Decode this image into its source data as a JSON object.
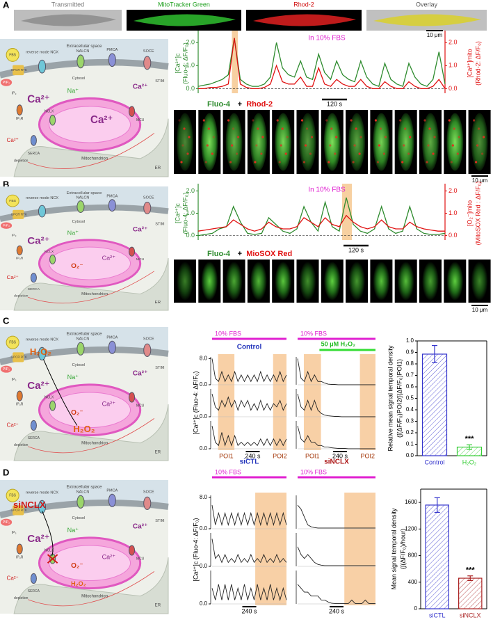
{
  "panel_labels": [
    "A",
    "B",
    "C",
    "D"
  ],
  "top_images": [
    "Transmitted",
    "MitoTracker Green",
    "Rhod-2",
    "Overlay"
  ],
  "scale_bar": "10 μm",
  "diagram": {
    "extracellular": "Extracellular space",
    "fbs": "FBS",
    "receptor": "GPCR RTK",
    "pip2": "PIP₂",
    "ip3": "IP₃",
    "ip3r": "IP₃R",
    "ncx": "reverse mode NCX",
    "nalcn": "NALCN",
    "pmca": "PMCA",
    "soce": "SOCE",
    "stim": "STIM",
    "cytosol": "Cytosol",
    "na": "Na⁺",
    "ca": "Ca²⁺",
    "nclx": "NCLX",
    "mcu": "MCU",
    "mito": "Mitochondrion",
    "er": "ER",
    "serca": "SERCA",
    "depletion": "depletion",
    "superoxide": "O₂⁻",
    "h2o2": "H₂O₂",
    "sinclx": "siNCLX"
  },
  "chart_data": [
    {
      "type": "dual-line",
      "annotation": "In 10% FBS",
      "scale": "120 s",
      "legend_joiner": "+",
      "ylabel": [
        "[Ca²⁺]c",
        "(Fluo-4: ΔF/F₀)"
      ],
      "y2label": [
        "[Ca²⁺]mito",
        "(Rhod-2: ΔF/F₀)"
      ],
      "ylim": [
        -0.2,
        2.4
      ],
      "y2lim": [
        -0.2,
        2.4
      ],
      "yticks": [
        {
          "value": 0,
          "label": "0.0"
        },
        {
          "value": 1,
          "label": "1.0"
        },
        {
          "value": 2,
          "label": "2.0"
        }
      ],
      "y2ticks": [
        {
          "value": 0,
          "label": "0.0"
        },
        {
          "value": 1,
          "label": "1.0"
        },
        {
          "value": 2,
          "label": "2.0"
        }
      ],
      "series": [
        {
          "name": "Fluo-4",
          "color": "#2e8b2e",
          "values": [
            0.1,
            0.15,
            0.2,
            0.3,
            0.4,
            0.6,
            2.2,
            0.4,
            0.2,
            0.1,
            0.1,
            0.2,
            0.5,
            2.0,
            0.9,
            0.6,
            0.5,
            1.2,
            0.5,
            0.4,
            1.5,
            0.7,
            0.4,
            1.2,
            0.6,
            0.4,
            0.3,
            1.2,
            0.5,
            0.2,
            0.1,
            1.1,
            0.4,
            0.2,
            0.1,
            1.1,
            0.5,
            0.2,
            0.1,
            0.4,
            1.6,
            0.2
          ]
        },
        {
          "name": "Rhod-2",
          "color": "#e01010",
          "axis": "y2",
          "values": [
            0,
            0,
            0.05,
            0.05,
            0.1,
            0.2,
            2.2,
            0.2,
            0.05,
            0,
            0,
            0.05,
            0.2,
            1.0,
            0.3,
            0.2,
            0.2,
            0.5,
            0.1,
            0.1,
            0.9,
            0.2,
            0.1,
            0.4,
            0.2,
            0.1,
            0.1,
            0.4,
            0.1,
            0,
            0,
            0.3,
            0.1,
            0,
            0,
            0.3,
            0.1,
            0,
            0,
            0.1,
            0.4,
            0
          ]
        }
      ]
    },
    {
      "type": "dual-line",
      "annotation": "In 10% FBS",
      "scale": "120 s",
      "legend_joiner": "+",
      "ylabel": [
        "[Ca²⁺]c",
        "(Fluo-4: ΔF/F₀)"
      ],
      "y2label": [
        "[O₂⁻]mito",
        "(MitoSOX Red : ΔF/F₀)"
      ],
      "ylim": [
        -0.2,
        2.2
      ],
      "y2lim": [
        -0.2,
        2.2
      ],
      "yticks": [
        {
          "value": 0,
          "label": "0.0"
        },
        {
          "value": 1,
          "label": "1.0"
        },
        {
          "value": 2,
          "label": "2.0"
        }
      ],
      "y2ticks": [
        {
          "value": 0,
          "label": "0.0"
        },
        {
          "value": 1,
          "label": "1.0"
        },
        {
          "value": 2,
          "label": "2.0"
        }
      ],
      "series": [
        {
          "name": "Fluo-4",
          "color": "#2e8b2e",
          "values": [
            0,
            0.05,
            0.1,
            0.3,
            0.4,
            1.3,
            0.6,
            0.1,
            0.05,
            0.1,
            0.8,
            0.5,
            0.2,
            0.1,
            0.3,
            1.3,
            0.6,
            0.2,
            1.5,
            0.4,
            0.2,
            1.7,
            0.5,
            0.2,
            0.1,
            0.3,
            1.3,
            0.3,
            0.1,
            0.2,
            1.3,
            0.3,
            0.1,
            0.05,
            0.05,
            0.1
          ]
        },
        {
          "name": "MioSOX Red",
          "color": "#e01010",
          "axis": "y2",
          "values": [
            0.2,
            0.25,
            0.3,
            0.35,
            0.4,
            0.7,
            0.5,
            0.3,
            0.2,
            0.3,
            0.6,
            0.4,
            0.3,
            0.3,
            0.4,
            0.8,
            0.6,
            0.4,
            0.8,
            0.5,
            0.4,
            0.9,
            0.6,
            0.4,
            0.3,
            0.4,
            0.7,
            0.4,
            0.3,
            0.3,
            0.6,
            0.4,
            0.3,
            0.25,
            0.2,
            0.2
          ]
        }
      ]
    },
    {
      "type": "traces",
      "ylabel": "[Ca²⁺]c (Fluo-4: ΔF/F₀)",
      "ylim": [
        0,
        8.5
      ],
      "yticks": [
        {
          "value": 0,
          "label": "0.0"
        },
        {
          "value": 8,
          "label": "8.0"
        }
      ],
      "regions": [
        "POI1",
        "POI2"
      ],
      "scale": "240 s",
      "columns": [
        {
          "title": "Control",
          "title_color": "#2233bb",
          "stimulus": "10% FBS",
          "series": [
            {
              "values": [
                8,
                2,
                1,
                4,
                1,
                3,
                1,
                4,
                1,
                3,
                1,
                3,
                1,
                3,
                1,
                4,
                1,
                3,
                1,
                3,
                1,
                4,
                1,
                3
              ]
            },
            {
              "values": [
                7,
                3,
                2,
                5,
                3,
                6,
                3,
                5,
                2,
                5,
                3,
                5,
                2,
                4,
                2,
                5,
                2,
                4,
                2,
                4,
                3,
                5,
                2,
                4
              ]
            },
            {
              "values": [
                7,
                2,
                1,
                5,
                1,
                4,
                1,
                4,
                1,
                2,
                1,
                2,
                1,
                2,
                1,
                3,
                1,
                3,
                1,
                3,
                1,
                3,
                1,
                3
              ]
            }
          ]
        },
        {
          "stimulus": "10% FBS",
          "treatment": "50 μM H₂O₂",
          "series": [
            {
              "values": [
                8,
                2,
                1,
                4,
                1,
                3,
                1,
                1,
                0.5,
                0.2,
                0.1,
                0.1,
                0,
                0,
                0,
                0,
                0,
                0,
                0,
                0,
                0,
                0,
                0,
                0
              ]
            },
            {
              "values": [
                7,
                3,
                2,
                5,
                2,
                5,
                2,
                1,
                0.5,
                0.3,
                0.2,
                0.1,
                0.1,
                0,
                0,
                0,
                0,
                0,
                0,
                0,
                0,
                0,
                0,
                0
              ]
            },
            {
              "values": [
                7,
                3,
                2,
                4,
                2,
                2,
                1,
                1,
                0.5,
                0.5,
                0.3,
                0.2,
                0.1,
                0.1,
                0.1,
                0,
                0,
                0,
                0,
                0,
                0,
                0,
                0,
                0
              ]
            }
          ]
        }
      ]
    },
    {
      "type": "bar",
      "ylabel": [
        "Relative mean signal temporal density",
        "(∫(ΔF/F₀)POI2/∫(ΔF/F₀)POI1)"
      ],
      "categories": [
        "Control",
        "H₂O₂"
      ],
      "values": [
        0.885,
        0.075
      ],
      "errors": [
        0.075,
        0.02
      ],
      "colors": [
        "#3333cc",
        "#33cc33"
      ],
      "significance": "***",
      "ylim": [
        0,
        1.0
      ],
      "yticks": [
        {
          "value": 0,
          "label": "0.0"
        },
        0.1,
        0.2,
        0.3,
        0.4,
        0.5,
        0.6,
        0.7,
        0.8,
        0.9,
        {
          "value": 1,
          "label": "1.0"
        }
      ]
    },
    {
      "type": "traces",
      "ylabel": "[Ca²⁺]c (Fluo-4: ΔF/F₀)",
      "ylim": [
        0,
        8.5
      ],
      "yticks": [
        {
          "value": 0,
          "label": "0.0"
        },
        {
          "value": 8,
          "label": "8.0"
        }
      ],
      "scale": "240 s",
      "columns": [
        {
          "title": "siCTL",
          "title_color": "#2233bb",
          "stimulus": "10% FBS",
          "series": [
            {
              "values": [
                6,
                1,
                4,
                1,
                4,
                1,
                4,
                1,
                4,
                1,
                4,
                1,
                4,
                1,
                4,
                1,
                4,
                1,
                4,
                1,
                4,
                1,
                4,
                1
              ]
            },
            {
              "values": [
                7,
                2,
                3,
                1,
                3,
                1,
                2,
                1,
                3,
                1,
                2,
                1,
                3,
                1,
                2,
                1,
                3,
                1,
                2,
                1,
                3,
                1,
                2,
                1
              ]
            },
            {
              "values": [
                4,
                1,
                5,
                1,
                5,
                1,
                5,
                1,
                4,
                1,
                5,
                1,
                4,
                1,
                5,
                1,
                4,
                1,
                5,
                1,
                4,
                1,
                4,
                1
              ]
            }
          ]
        },
        {
          "title": "siNCLX",
          "title_color": "#aa1111",
          "stimulus": "10% FBS",
          "series": [
            {
              "values": [
                6,
                5,
                3,
                1,
                0.5,
                0.3,
                0.2,
                0.2,
                0.2,
                0.2,
                0.2,
                0.2,
                0.2,
                0.2,
                0.2,
                0.2,
                0.2,
                0.2,
                0.2,
                0.2,
                0.2,
                0.2,
                0.2,
                0.2
              ]
            },
            {
              "values": [
                5,
                3,
                2,
                3,
                2,
                1,
                0.5,
                0.3,
                0.2,
                0.2,
                0.2,
                0.2,
                0.2,
                0.2,
                0.2,
                0.2,
                0.2,
                0.2,
                0.2,
                0.2,
                0.2,
                0.2,
                0.2,
                0.2
              ]
            },
            {
              "values": [
                5,
                4,
                3,
                3,
                2,
                2,
                2,
                1,
                1,
                0.5,
                0.2,
                0.1,
                0.1,
                0.1,
                0.1,
                0.1,
                1,
                0.1,
                0.1,
                0.1,
                1,
                0.1,
                0.1,
                0.1
              ]
            }
          ]
        }
      ]
    },
    {
      "type": "bar",
      "ylabel": [
        "Mean signal temporal density",
        "(∫(ΔF/F₀)/hour)"
      ],
      "categories": [
        "siCTL",
        "siNCLX"
      ],
      "values": [
        1560,
        460
      ],
      "errors": [
        110,
        35
      ],
      "colors": [
        "#3333cc",
        "#aa2222"
      ],
      "significance": "***",
      "ylim": [
        0,
        1800
      ],
      "yticks": [
        0,
        400,
        800,
        1200,
        1600
      ]
    }
  ]
}
